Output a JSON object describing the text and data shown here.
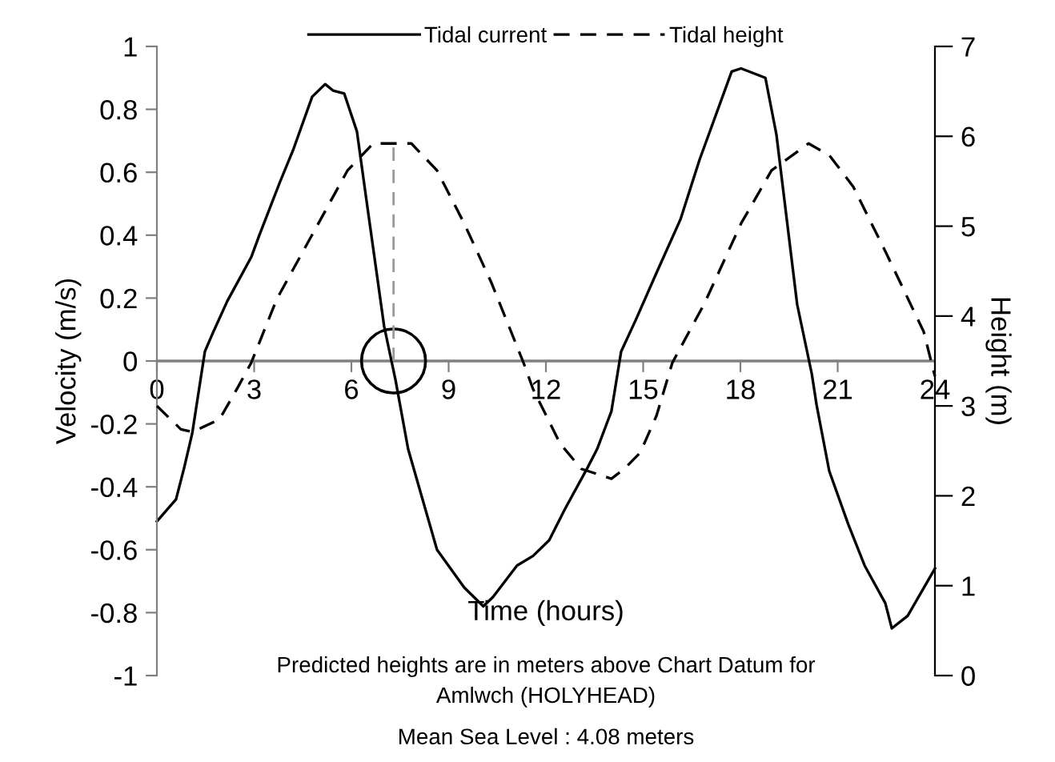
{
  "chart_data": {
    "type": "line",
    "xlabel": "Time (hours)",
    "ylabel": "Velocity (m/s)",
    "y2label": "Height (m)",
    "xlim": [
      0,
      24
    ],
    "xticks": [
      0,
      3,
      6,
      9,
      12,
      15,
      18,
      21,
      24
    ],
    "ylim": [
      -1,
      1
    ],
    "yticks": [
      -1,
      -0.8,
      -0.6,
      -0.4,
      -0.2,
      0,
      0.2,
      0.4,
      0.6,
      0.8,
      1
    ],
    "y2lim": [
      0,
      7
    ],
    "y2ticks": [
      0,
      1,
      2,
      3,
      4,
      5,
      6,
      7
    ],
    "grid": false,
    "legend": "top",
    "marker": "none",
    "series": [
      {
        "name": "Tidal current",
        "color": "#000000",
        "line_style": "solid",
        "x": [
          0,
          0.59,
          0.84,
          1.09,
          1.48,
          1.73,
          2.17,
          2.91,
          3.16,
          3.8,
          4.2,
          4.79,
          5.19,
          5.43,
          5.78,
          6.17,
          6.52,
          7.01,
          7.36,
          7.75,
          8.64,
          9.48,
          10.07,
          10.37,
          11.11,
          11.6,
          12.1,
          12.59,
          13.28,
          13.58,
          14.02,
          14.32,
          14.77,
          15.41,
          16.15,
          16.74,
          17.73,
          18.02,
          18.77,
          19.11,
          19.75,
          20.2,
          20.35,
          20.74,
          21.33,
          21.83,
          22.47,
          22.67,
          23.16,
          24
        ],
        "values": [
          -0.51,
          -0.44,
          -0.34,
          -0.23,
          0.03,
          0.09,
          0.19,
          0.33,
          0.4,
          0.57,
          0.67,
          0.84,
          0.88,
          0.86,
          0.85,
          0.73,
          0.47,
          0.11,
          -0.06,
          -0.28,
          -0.6,
          -0.72,
          -0.78,
          -0.75,
          -0.65,
          -0.62,
          -0.57,
          -0.47,
          -0.34,
          -0.28,
          -0.16,
          0.03,
          0.13,
          0.28,
          0.45,
          0.64,
          0.92,
          0.93,
          0.9,
          0.72,
          0.18,
          -0.04,
          -0.14,
          -0.35,
          -0.52,
          -0.65,
          -0.77,
          -0.85,
          -0.81,
          -0.66
        ]
      },
      {
        "name": "Tidal height",
        "color": "#000000",
        "line_style": "dashed",
        "axis": "y2",
        "x": [
          0,
          0.74,
          1.09,
          1.93,
          2.47,
          2.91,
          3.7,
          4.89,
          5.88,
          6.67,
          7.85,
          8.64,
          9.48,
          10.32,
          11.31,
          11.6,
          12.44,
          13.09,
          14.02,
          14.42,
          14.91,
          15.41,
          15.9,
          16.89,
          18.02,
          18.96,
          20.1,
          20.74,
          21.48,
          22.47,
          23.65,
          24
        ],
        "values": [
          3.0,
          2.74,
          2.71,
          2.85,
          3.19,
          3.48,
          4.19,
          4.97,
          5.62,
          5.92,
          5.92,
          5.62,
          5.03,
          4.37,
          3.48,
          3.19,
          2.58,
          2.3,
          2.19,
          2.3,
          2.48,
          2.89,
          3.48,
          4.14,
          5.03,
          5.62,
          5.92,
          5.79,
          5.44,
          4.72,
          3.83,
          3.33
        ]
      }
    ],
    "ref_lines": [
      {
        "axis": "x",
        "value": 7.3,
        "color": "#999999",
        "line_style": "dashed"
      }
    ],
    "annotations": [
      "Predicted heights are in meters above Chart Datum for\nAmlwch (HOLYHEAD)",
      "Mean Sea Level : 4.08 meters"
    ]
  }
}
